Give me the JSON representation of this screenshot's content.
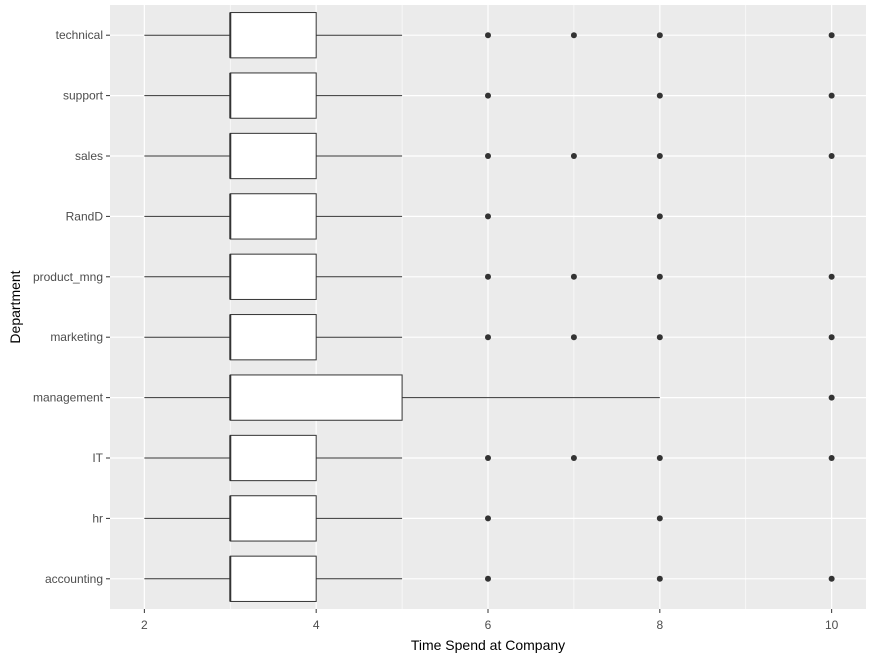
{
  "chart_data": {
    "type": "boxplot",
    "orientation": "horizontal",
    "xlabel": "Time Spend at Company",
    "ylabel": "Department",
    "xlim": [
      1.6,
      10.4
    ],
    "x_ticks": [
      2,
      4,
      6,
      8,
      10
    ],
    "grid": true,
    "colors": {
      "panel": "#ebebeb",
      "grid": "#ffffff",
      "box_fill": "#ffffff",
      "box_line": "#333333",
      "outlier": "#333333"
    },
    "categories": [
      "accounting",
      "hr",
      "IT",
      "management",
      "marketing",
      "product_mng",
      "RandD",
      "sales",
      "support",
      "technical"
    ],
    "boxes": [
      {
        "category": "accounting",
        "whisker_low": 2,
        "q1": 3,
        "median": 3,
        "q3": 4,
        "whisker_high": 5,
        "outliers": [
          6,
          8,
          10
        ]
      },
      {
        "category": "hr",
        "whisker_low": 2,
        "q1": 3,
        "median": 3,
        "q3": 4,
        "whisker_high": 5,
        "outliers": [
          6,
          8
        ]
      },
      {
        "category": "IT",
        "whisker_low": 2,
        "q1": 3,
        "median": 3,
        "q3": 4,
        "whisker_high": 5,
        "outliers": [
          6,
          7,
          8,
          10
        ]
      },
      {
        "category": "management",
        "whisker_low": 2,
        "q1": 3,
        "median": 3,
        "q3": 5,
        "whisker_high": 8,
        "outliers": [
          10
        ]
      },
      {
        "category": "marketing",
        "whisker_low": 2,
        "q1": 3,
        "median": 3,
        "q3": 4,
        "whisker_high": 5,
        "outliers": [
          6,
          7,
          8,
          10
        ]
      },
      {
        "category": "product_mng",
        "whisker_low": 2,
        "q1": 3,
        "median": 3,
        "q3": 4,
        "whisker_high": 5,
        "outliers": [
          6,
          7,
          8,
          10
        ]
      },
      {
        "category": "RandD",
        "whisker_low": 2,
        "q1": 3,
        "median": 3,
        "q3": 4,
        "whisker_high": 5,
        "outliers": [
          6,
          8
        ]
      },
      {
        "category": "sales",
        "whisker_low": 2,
        "q1": 3,
        "median": 3,
        "q3": 4,
        "whisker_high": 5,
        "outliers": [
          6,
          7,
          8,
          10
        ]
      },
      {
        "category": "support",
        "whisker_low": 2,
        "q1": 3,
        "median": 3,
        "q3": 4,
        "whisker_high": 5,
        "outliers": [
          6,
          8,
          10
        ]
      },
      {
        "category": "technical",
        "whisker_low": 2,
        "q1": 3,
        "median": 3,
        "q3": 4,
        "whisker_high": 5,
        "outliers": [
          6,
          7,
          8,
          10
        ]
      }
    ]
  }
}
